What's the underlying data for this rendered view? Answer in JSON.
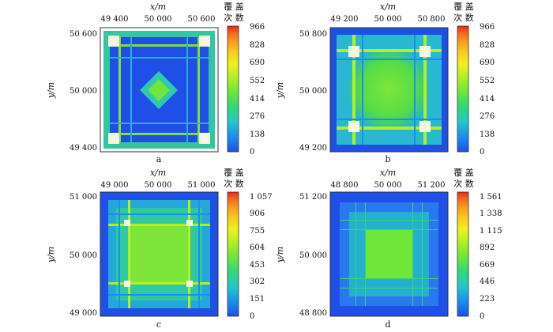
{
  "figure": {
    "panels": [
      {
        "label": "a",
        "xlabel": "x/m",
        "ylabel": "y/m",
        "x_ticks": [
          "49 400",
          "50 000",
          "50 600"
        ],
        "y_ticks": [
          "50 600",
          "50 000",
          "49 400"
        ],
        "colorbar_title": [
          "覆 盖",
          "次 数"
        ],
        "colorbar_ticks": [
          "966",
          "828",
          "690",
          "552",
          "414",
          "276",
          "138",
          "0"
        ],
        "pattern": "edge-lines"
      },
      {
        "label": "b",
        "xlabel": "x/m",
        "ylabel": "y/m",
        "x_ticks": [
          "49 200",
          "50 000",
          "50 800"
        ],
        "y_ticks": [
          "50 800",
          "50 000",
          "49 200"
        ],
        "colorbar_title": [
          "覆 盖",
          "次 数"
        ],
        "colorbar_ticks": [
          "966",
          "828",
          "690",
          "552",
          "414",
          "276",
          "138",
          "0"
        ],
        "pattern": "center-disk"
      },
      {
        "label": "c",
        "xlabel": "x/m",
        "ylabel": "y/m",
        "x_ticks": [
          "49 000",
          "50 000",
          "51 000"
        ],
        "y_ticks": [
          "51 000",
          "50 000",
          "49 000"
        ],
        "colorbar_title": [
          "覆 盖",
          "次 数"
        ],
        "colorbar_ticks": [
          "1 057",
          "906",
          "755",
          "604",
          "453",
          "302",
          "151",
          "0"
        ],
        "pattern": "center-square"
      },
      {
        "label": "d",
        "xlabel": "x/m",
        "ylabel": "y/m",
        "x_ticks": [
          "48 800",
          "50 000",
          "51 200"
        ],
        "y_ticks": [
          "51 200",
          "50 000",
          "48 800"
        ],
        "colorbar_title": [
          "覆 盖",
          "次 数"
        ],
        "colorbar_ticks": [
          "1 561",
          "1 338",
          "1 115",
          "892",
          "669",
          "446",
          "223",
          "0"
        ],
        "pattern": "fine-grid"
      }
    ],
    "colormap": [
      "#1f4fe6",
      "#1a8ff0",
      "#25c8c8",
      "#30d878",
      "#6ee63a",
      "#b4f020",
      "#f0f01e",
      "#f8c81c",
      "#f89a1c",
      "#f0641c",
      "#e8281c"
    ]
  }
}
